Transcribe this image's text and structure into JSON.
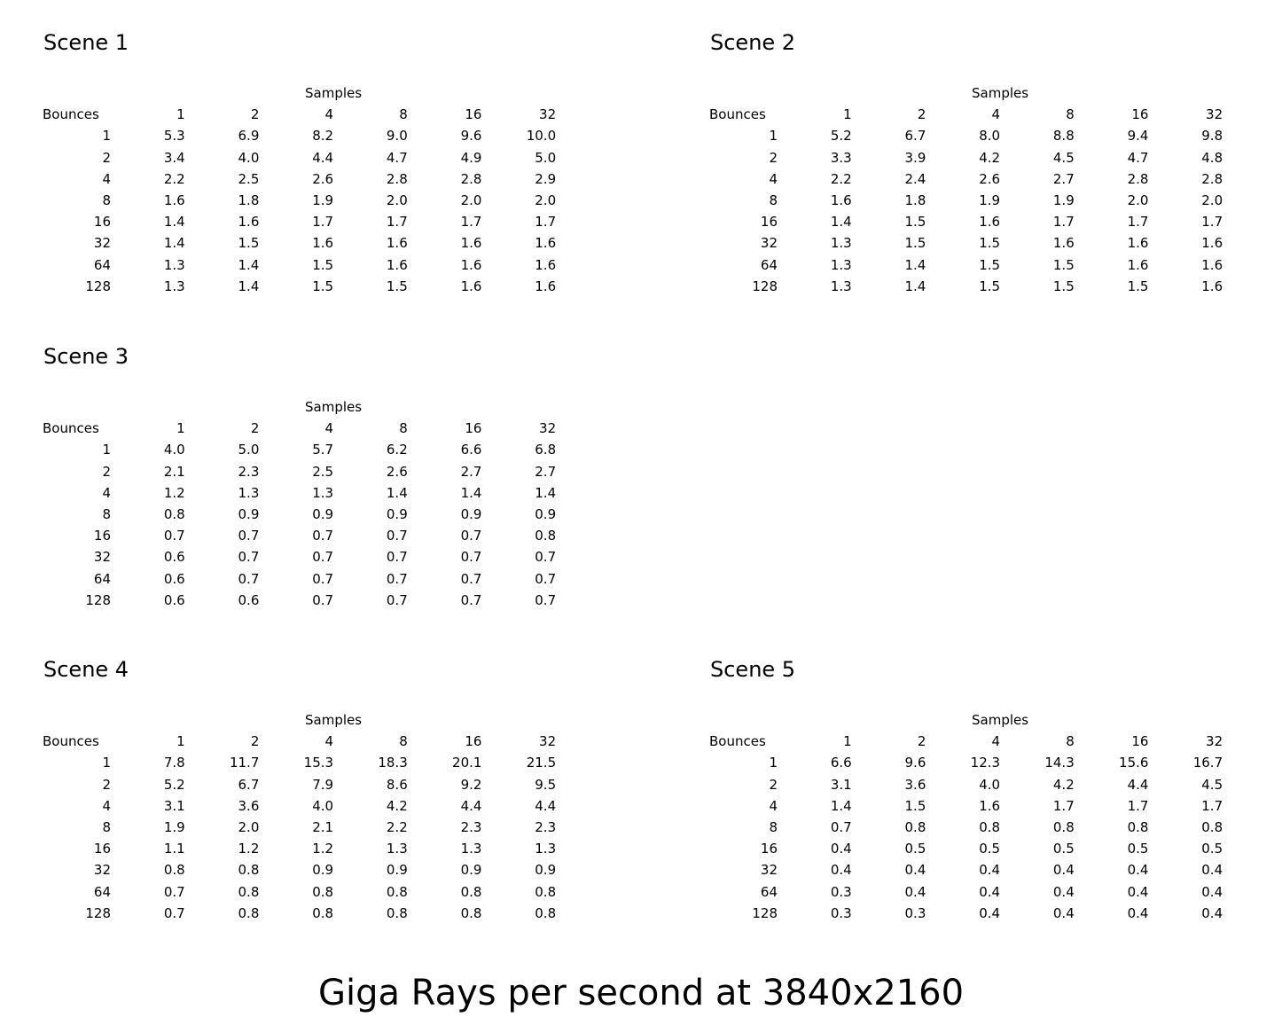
{
  "caption": "Giga Rays per second at 3840x2160",
  "chart_data": [
    {
      "type": "table",
      "title": "Scene 1",
      "column_group_label": "Samples",
      "row_header_label": "Bounces",
      "columns": [
        "1",
        "2",
        "4",
        "8",
        "16",
        "32"
      ],
      "rows": [
        "1",
        "2",
        "4",
        "8",
        "16",
        "32",
        "64",
        "128"
      ],
      "values": [
        [
          "5.3",
          "6.9",
          "8.2",
          "9.0",
          "9.6",
          "10.0"
        ],
        [
          "3.4",
          "4.0",
          "4.4",
          "4.7",
          "4.9",
          "5.0"
        ],
        [
          "2.2",
          "2.5",
          "2.6",
          "2.8",
          "2.8",
          "2.9"
        ],
        [
          "1.6",
          "1.8",
          "1.9",
          "2.0",
          "2.0",
          "2.0"
        ],
        [
          "1.4",
          "1.6",
          "1.7",
          "1.7",
          "1.7",
          "1.7"
        ],
        [
          "1.4",
          "1.5",
          "1.6",
          "1.6",
          "1.6",
          "1.6"
        ],
        [
          "1.3",
          "1.4",
          "1.5",
          "1.6",
          "1.6",
          "1.6"
        ],
        [
          "1.3",
          "1.4",
          "1.5",
          "1.5",
          "1.6",
          "1.6"
        ]
      ]
    },
    {
      "type": "table",
      "title": "Scene 2",
      "column_group_label": "Samples",
      "row_header_label": "Bounces",
      "columns": [
        "1",
        "2",
        "4",
        "8",
        "16",
        "32"
      ],
      "rows": [
        "1",
        "2",
        "4",
        "8",
        "16",
        "32",
        "64",
        "128"
      ],
      "values": [
        [
          "5.2",
          "6.7",
          "8.0",
          "8.8",
          "9.4",
          "9.8"
        ],
        [
          "3.3",
          "3.9",
          "4.2",
          "4.5",
          "4.7",
          "4.8"
        ],
        [
          "2.2",
          "2.4",
          "2.6",
          "2.7",
          "2.8",
          "2.8"
        ],
        [
          "1.6",
          "1.8",
          "1.9",
          "1.9",
          "2.0",
          "2.0"
        ],
        [
          "1.4",
          "1.5",
          "1.6",
          "1.7",
          "1.7",
          "1.7"
        ],
        [
          "1.3",
          "1.5",
          "1.5",
          "1.6",
          "1.6",
          "1.6"
        ],
        [
          "1.3",
          "1.4",
          "1.5",
          "1.5",
          "1.6",
          "1.6"
        ],
        [
          "1.3",
          "1.4",
          "1.5",
          "1.5",
          "1.5",
          "1.6"
        ]
      ]
    },
    {
      "type": "table",
      "title": "Scene 3",
      "column_group_label": "Samples",
      "row_header_label": "Bounces",
      "columns": [
        "1",
        "2",
        "4",
        "8",
        "16",
        "32"
      ],
      "rows": [
        "1",
        "2",
        "4",
        "8",
        "16",
        "32",
        "64",
        "128"
      ],
      "values": [
        [
          "4.0",
          "5.0",
          "5.7",
          "6.2",
          "6.6",
          "6.8"
        ],
        [
          "2.1",
          "2.3",
          "2.5",
          "2.6",
          "2.7",
          "2.7"
        ],
        [
          "1.2",
          "1.3",
          "1.3",
          "1.4",
          "1.4",
          "1.4"
        ],
        [
          "0.8",
          "0.9",
          "0.9",
          "0.9",
          "0.9",
          "0.9"
        ],
        [
          "0.7",
          "0.7",
          "0.7",
          "0.7",
          "0.7",
          "0.8"
        ],
        [
          "0.6",
          "0.7",
          "0.7",
          "0.7",
          "0.7",
          "0.7"
        ],
        [
          "0.6",
          "0.7",
          "0.7",
          "0.7",
          "0.7",
          "0.7"
        ],
        [
          "0.6",
          "0.6",
          "0.7",
          "0.7",
          "0.7",
          "0.7"
        ]
      ]
    },
    {
      "type": "table",
      "title": "Scene 4",
      "column_group_label": "Samples",
      "row_header_label": "Bounces",
      "columns": [
        "1",
        "2",
        "4",
        "8",
        "16",
        "32"
      ],
      "rows": [
        "1",
        "2",
        "4",
        "8",
        "16",
        "32",
        "64",
        "128"
      ],
      "values": [
        [
          "7.8",
          "11.7",
          "15.3",
          "18.3",
          "20.1",
          "21.5"
        ],
        [
          "5.2",
          "6.7",
          "7.9",
          "8.6",
          "9.2",
          "9.5"
        ],
        [
          "3.1",
          "3.6",
          "4.0",
          "4.2",
          "4.4",
          "4.4"
        ],
        [
          "1.9",
          "2.0",
          "2.1",
          "2.2",
          "2.3",
          "2.3"
        ],
        [
          "1.1",
          "1.2",
          "1.2",
          "1.3",
          "1.3",
          "1.3"
        ],
        [
          "0.8",
          "0.8",
          "0.9",
          "0.9",
          "0.9",
          "0.9"
        ],
        [
          "0.7",
          "0.8",
          "0.8",
          "0.8",
          "0.8",
          "0.8"
        ],
        [
          "0.7",
          "0.8",
          "0.8",
          "0.8",
          "0.8",
          "0.8"
        ]
      ]
    },
    {
      "type": "table",
      "title": "Scene 5",
      "column_group_label": "Samples",
      "row_header_label": "Bounces",
      "columns": [
        "1",
        "2",
        "4",
        "8",
        "16",
        "32"
      ],
      "rows": [
        "1",
        "2",
        "4",
        "8",
        "16",
        "32",
        "64",
        "128"
      ],
      "values": [
        [
          "6.6",
          "9.6",
          "12.3",
          "14.3",
          "15.6",
          "16.7"
        ],
        [
          "3.1",
          "3.6",
          "4.0",
          "4.2",
          "4.4",
          "4.5"
        ],
        [
          "1.4",
          "1.5",
          "1.6",
          "1.7",
          "1.7",
          "1.7"
        ],
        [
          "0.7",
          "0.8",
          "0.8",
          "0.8",
          "0.8",
          "0.8"
        ],
        [
          "0.4",
          "0.5",
          "0.5",
          "0.5",
          "0.5",
          "0.5"
        ],
        [
          "0.4",
          "0.4",
          "0.4",
          "0.4",
          "0.4",
          "0.4"
        ],
        [
          "0.3",
          "0.4",
          "0.4",
          "0.4",
          "0.4",
          "0.4"
        ],
        [
          "0.3",
          "0.3",
          "0.4",
          "0.4",
          "0.4",
          "0.4"
        ]
      ]
    }
  ]
}
